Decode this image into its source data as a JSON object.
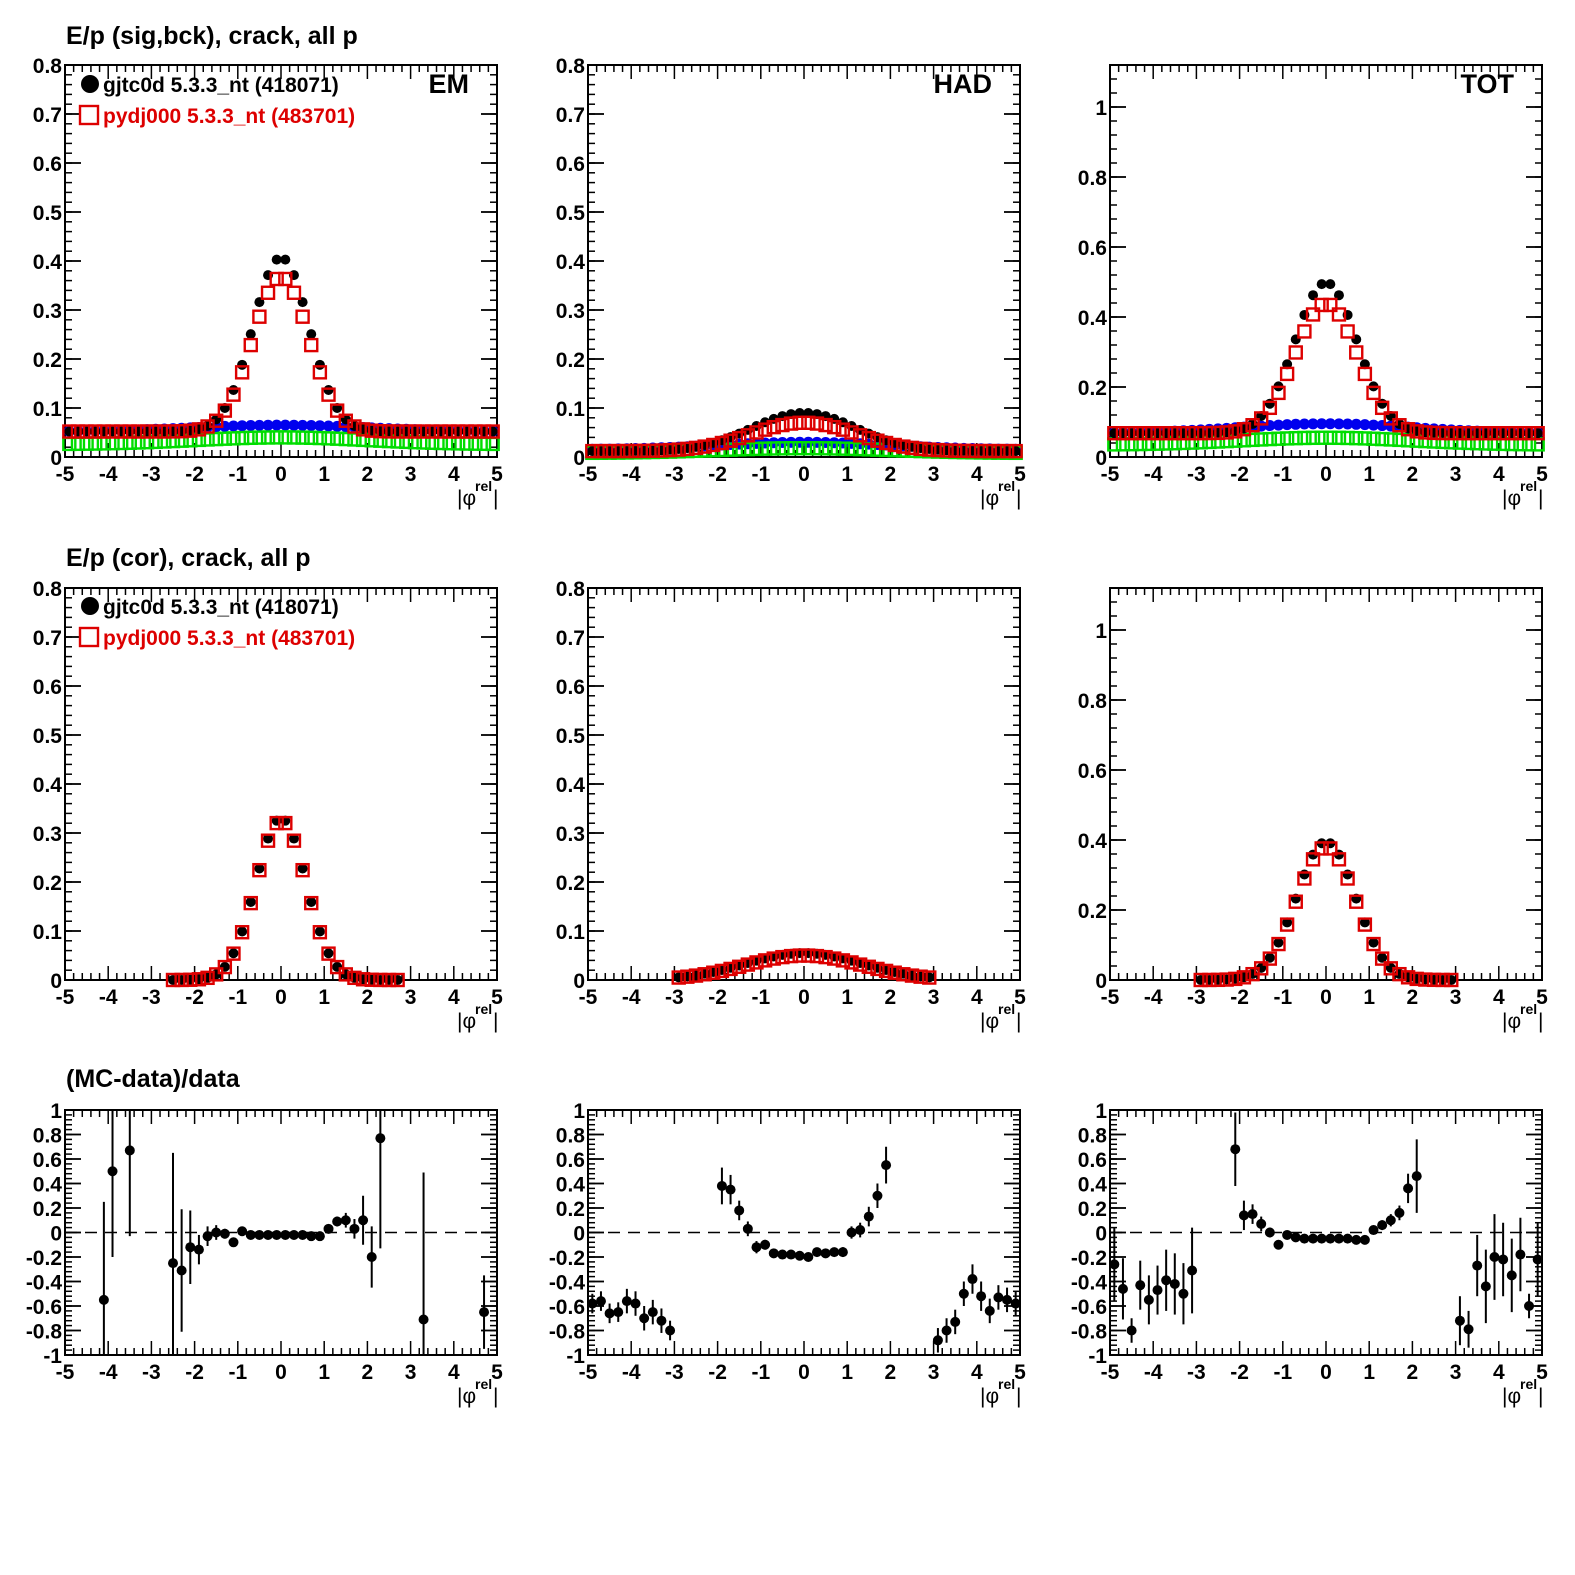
{
  "figure": {
    "row_titles": [
      "E/p (sig,bck), crack, all p",
      "E/p (cor), crack, all p",
      "(MC-data)/data"
    ],
    "xlabel": "|φ",
    "xlabel_sup": "rel",
    "xlabel_end": "|",
    "colors": {
      "data": "#000000",
      "mc": "#dd0000",
      "bck_data": "#0000ee",
      "bck_mc": "#00dd00"
    }
  },
  "legend": {
    "entries": [
      {
        "label": "gjtc0d 5.3.3_nt (418071)",
        "marker": "filled-circle",
        "color": "#000000"
      },
      {
        "label": "pydj000 5.3.3_nt (483701)",
        "marker": "open-square",
        "color": "#dd0000"
      }
    ]
  },
  "chart_data": [
    {
      "type": "scatter",
      "row": 0,
      "col": 0,
      "panel_label": "EM",
      "xlim": [
        -5,
        5
      ],
      "ylim": [
        0,
        0.8
      ],
      "yticks": [
        0,
        0.1,
        0.2,
        0.3,
        0.4,
        0.5,
        0.6,
        0.7,
        0.8
      ],
      "ytick_labels": [
        "0",
        "0.1",
        "0.2",
        "0.3",
        "0.4",
        "0.5",
        "0.6",
        "0.7",
        "0.8"
      ],
      "shape": {
        "kind": "gauss",
        "amp_data": 0.355,
        "amp_mc": 0.315,
        "sigma": 0.65,
        "base_data": 0.052,
        "base_mc": 0.052,
        "bck_data": 0.052,
        "bck_data_peak": 0.065,
        "bck_mc": 0.026,
        "bck_mc_peak": 0.04
      }
    },
    {
      "type": "scatter",
      "row": 0,
      "col": 1,
      "panel_label": "HAD",
      "xlim": [
        -5,
        5
      ],
      "ylim": [
        0,
        0.8
      ],
      "yticks": [
        0,
        0.1,
        0.2,
        0.3,
        0.4,
        0.5,
        0.6,
        0.7,
        0.8
      ],
      "ytick_labels": [
        "0",
        "0.1",
        "0.2",
        "0.3",
        "0.4",
        "0.5",
        "0.6",
        "0.7",
        "0.8"
      ],
      "shape": {
        "kind": "gauss",
        "amp_data": 0.078,
        "amp_mc": 0.058,
        "sigma": 1.2,
        "base_data": 0.012,
        "base_mc": 0.012,
        "bck_data": 0.015,
        "bck_data_peak": 0.03,
        "bck_mc": 0.008,
        "bck_mc_peak": 0.018
      }
    },
    {
      "type": "scatter",
      "row": 0,
      "col": 2,
      "panel_label": "TOT",
      "xlim": [
        -5,
        5
      ],
      "ylim": [
        0,
        1.12
      ],
      "yticks": [
        0,
        0.2,
        0.4,
        0.6,
        0.8,
        1
      ],
      "ytick_labels": [
        "0",
        "0.2",
        "0.4",
        "0.6",
        "0.8",
        "1"
      ],
      "shape": {
        "kind": "gauss",
        "amp_data": 0.43,
        "amp_mc": 0.37,
        "sigma": 0.72,
        "base_data": 0.068,
        "base_mc": 0.068,
        "bck_data": 0.068,
        "bck_data_peak": 0.095,
        "bck_mc": 0.035,
        "bck_mc_peak": 0.055
      }
    },
    {
      "type": "scatter",
      "row": 1,
      "col": 0,
      "panel_label": "",
      "xlim": [
        -5,
        5
      ],
      "ylim": [
        0,
        0.8
      ],
      "yticks": [
        0,
        0.1,
        0.2,
        0.3,
        0.4,
        0.5,
        0.6,
        0.7,
        0.8
      ],
      "ytick_labels": [
        "0",
        "0.1",
        "0.2",
        "0.3",
        "0.4",
        "0.5",
        "0.6",
        "0.7",
        "0.8"
      ],
      "shape": {
        "kind": "gauss",
        "amp_data": 0.33,
        "amp_mc": 0.325,
        "sigma": 0.58,
        "base_data": 0.0,
        "base_mc": 0.0,
        "range": [
          -2.5,
          2.7
        ]
      }
    },
    {
      "type": "scatter",
      "row": 1,
      "col": 1,
      "panel_label": "",
      "xlim": [
        -5,
        5
      ],
      "ylim": [
        0,
        0.8
      ],
      "yticks": [
        0,
        0.1,
        0.2,
        0.3,
        0.4,
        0.5,
        0.6,
        0.7,
        0.8
      ],
      "ytick_labels": [
        "0",
        "0.1",
        "0.2",
        "0.3",
        "0.4",
        "0.5",
        "0.6",
        "0.7",
        "0.8"
      ],
      "shape": {
        "kind": "gauss",
        "amp_data": 0.055,
        "amp_mc": 0.05,
        "sigma": 1.35,
        "base_data": 0.0,
        "base_mc": 0.0,
        "range": [
          -3,
          3
        ]
      }
    },
    {
      "type": "scatter",
      "row": 1,
      "col": 2,
      "panel_label": "",
      "xlim": [
        -5,
        5
      ],
      "ylim": [
        0,
        1.12
      ],
      "yticks": [
        0,
        0.2,
        0.4,
        0.6,
        0.8,
        1
      ],
      "ytick_labels": [
        "0",
        "0.2",
        "0.4",
        "0.6",
        "0.8",
        "1"
      ],
      "shape": {
        "kind": "gauss",
        "amp_data": 0.395,
        "amp_mc": 0.38,
        "sigma": 0.68,
        "base_data": 0.0,
        "base_mc": 0.0,
        "range": [
          -3,
          3
        ]
      }
    },
    {
      "type": "scatter",
      "row": 2,
      "col": 0,
      "panel_label": "",
      "xlim": [
        -5,
        5
      ],
      "ylim": [
        -1,
        1
      ],
      "yticks": [
        -1,
        -0.8,
        -0.6,
        -0.4,
        -0.2,
        0,
        0.2,
        0.4,
        0.6,
        0.8,
        1
      ],
      "ytick_labels": [
        "-1",
        "-0.8",
        "-0.6",
        "-0.4",
        "-0.2",
        "0",
        "0.2",
        "0.4",
        "0.6",
        "0.8",
        "1"
      ],
      "dashed_zero": true,
      "points": [
        [
          -4.1,
          -0.55,
          0.8
        ],
        [
          -3.9,
          0.5,
          0.7
        ],
        [
          -3.5,
          0.67,
          0.7
        ],
        [
          -2.5,
          -0.25,
          0.9
        ],
        [
          -2.3,
          -0.31,
          0.5
        ],
        [
          -2.1,
          -0.12,
          0.3
        ],
        [
          -1.9,
          -0.14,
          0.12
        ],
        [
          -1.7,
          -0.03,
          0.08
        ],
        [
          -1.5,
          0.0,
          0.06
        ],
        [
          -1.3,
          -0.01,
          0.04
        ],
        [
          -1.1,
          -0.08,
          0.03
        ],
        [
          -0.9,
          0.01,
          0.02
        ],
        [
          -0.7,
          -0.02,
          0.02
        ],
        [
          -0.5,
          -0.02,
          0.02
        ],
        [
          -0.3,
          -0.02,
          0.02
        ],
        [
          -0.1,
          -0.02,
          0.02
        ],
        [
          0.1,
          -0.02,
          0.02
        ],
        [
          0.3,
          -0.02,
          0.02
        ],
        [
          0.5,
          -0.02,
          0.02
        ],
        [
          0.7,
          -0.03,
          0.02
        ],
        [
          0.9,
          -0.03,
          0.02
        ],
        [
          1.1,
          0.03,
          0.03
        ],
        [
          1.3,
          0.09,
          0.04
        ],
        [
          1.5,
          0.1,
          0.06
        ],
        [
          1.7,
          0.03,
          0.08
        ],
        [
          1.9,
          0.1,
          0.2
        ],
        [
          2.1,
          -0.2,
          0.25
        ],
        [
          2.3,
          0.77,
          0.9
        ],
        [
          3.3,
          -0.71,
          1.2
        ],
        [
          4.7,
          -0.65,
          0.3
        ]
      ]
    },
    {
      "type": "scatter",
      "row": 2,
      "col": 1,
      "panel_label": "",
      "xlim": [
        -5,
        5
      ],
      "ylim": [
        -1,
        1
      ],
      "yticks": [
        -1,
        -0.8,
        -0.6,
        -0.4,
        -0.2,
        0,
        0.2,
        0.4,
        0.6,
        0.8,
        1
      ],
      "ytick_labels": [
        "-1",
        "-0.8",
        "-0.6",
        "-0.4",
        "-0.2",
        "0",
        "0.2",
        "0.4",
        "0.6",
        "0.8",
        "1"
      ],
      "dashed_zero": true,
      "points": [
        [
          -4.9,
          -0.58,
          0.08
        ],
        [
          -4.7,
          -0.56,
          0.08
        ],
        [
          -4.5,
          -0.66,
          0.08
        ],
        [
          -4.3,
          -0.65,
          0.08
        ],
        [
          -4.1,
          -0.56,
          0.1
        ],
        [
          -3.9,
          -0.58,
          0.1
        ],
        [
          -3.7,
          -0.7,
          0.1
        ],
        [
          -3.5,
          -0.65,
          0.1
        ],
        [
          -3.3,
          -0.72,
          0.1
        ],
        [
          -3.1,
          -0.8,
          0.08
        ],
        [
          -1.9,
          0.38,
          0.15
        ],
        [
          -1.7,
          0.35,
          0.12
        ],
        [
          -1.5,
          0.18,
          0.08
        ],
        [
          -1.3,
          0.03,
          0.06
        ],
        [
          -1.1,
          -0.12,
          0.05
        ],
        [
          -0.9,
          -0.1,
          0.04
        ],
        [
          -0.7,
          -0.17,
          0.03
        ],
        [
          -0.5,
          -0.18,
          0.03
        ],
        [
          -0.3,
          -0.18,
          0.03
        ],
        [
          -0.1,
          -0.19,
          0.03
        ],
        [
          0.1,
          -0.2,
          0.03
        ],
        [
          0.3,
          -0.16,
          0.03
        ],
        [
          0.5,
          -0.17,
          0.03
        ],
        [
          0.7,
          -0.16,
          0.03
        ],
        [
          0.9,
          -0.16,
          0.04
        ],
        [
          1.1,
          0.0,
          0.05
        ],
        [
          1.3,
          0.02,
          0.06
        ],
        [
          1.5,
          0.13,
          0.08
        ],
        [
          1.7,
          0.3,
          0.1
        ],
        [
          1.9,
          0.55,
          0.15
        ],
        [
          3.1,
          -0.88,
          0.1
        ],
        [
          3.3,
          -0.8,
          0.1
        ],
        [
          3.5,
          -0.73,
          0.1
        ],
        [
          3.7,
          -0.5,
          0.1
        ],
        [
          3.9,
          -0.38,
          0.12
        ],
        [
          4.1,
          -0.52,
          0.12
        ],
        [
          4.3,
          -0.64,
          0.1
        ],
        [
          4.5,
          -0.53,
          0.1
        ],
        [
          4.7,
          -0.55,
          0.1
        ],
        [
          4.9,
          -0.58,
          0.1
        ]
      ]
    },
    {
      "type": "scatter",
      "row": 2,
      "col": 2,
      "panel_label": "",
      "xlim": [
        -5,
        5
      ],
      "ylim": [
        -1,
        1
      ],
      "yticks": [
        -1,
        -0.8,
        -0.6,
        -0.4,
        -0.2,
        0,
        0.2,
        0.4,
        0.6,
        0.8,
        1
      ],
      "ytick_labels": [
        "-1",
        "-0.8",
        "-0.6",
        "-0.4",
        "-0.2",
        "0",
        "0.2",
        "0.4",
        "0.6",
        "0.8",
        "1"
      ],
      "dashed_zero": true,
      "points": [
        [
          -4.9,
          -0.26,
          0.3
        ],
        [
          -4.7,
          -0.46,
          0.25
        ],
        [
          -4.5,
          -0.8,
          0.1
        ],
        [
          -4.3,
          -0.43,
          0.2
        ],
        [
          -4.1,
          -0.55,
          0.2
        ],
        [
          -3.9,
          -0.47,
          0.2
        ],
        [
          -3.7,
          -0.39,
          0.25
        ],
        [
          -3.5,
          -0.42,
          0.25
        ],
        [
          -3.3,
          -0.5,
          0.25
        ],
        [
          -3.1,
          -0.31,
          0.35
        ],
        [
          -2.1,
          0.68,
          0.3
        ],
        [
          -1.9,
          0.14,
          0.12
        ],
        [
          -1.7,
          0.15,
          0.08
        ],
        [
          -1.5,
          0.07,
          0.06
        ],
        [
          -1.3,
          0.0,
          0.04
        ],
        [
          -1.1,
          -0.1,
          0.03
        ],
        [
          -0.9,
          -0.02,
          0.02
        ],
        [
          -0.7,
          -0.04,
          0.02
        ],
        [
          -0.5,
          -0.05,
          0.02
        ],
        [
          -0.3,
          -0.05,
          0.02
        ],
        [
          -0.1,
          -0.05,
          0.02
        ],
        [
          0.1,
          -0.05,
          0.02
        ],
        [
          0.3,
          -0.05,
          0.02
        ],
        [
          0.5,
          -0.05,
          0.02
        ],
        [
          0.7,
          -0.06,
          0.02
        ],
        [
          0.9,
          -0.06,
          0.02
        ],
        [
          1.1,
          0.02,
          0.03
        ],
        [
          1.3,
          0.06,
          0.04
        ],
        [
          1.5,
          0.1,
          0.05
        ],
        [
          1.7,
          0.16,
          0.06
        ],
        [
          1.9,
          0.36,
          0.12
        ],
        [
          2.1,
          0.46,
          0.3
        ],
        [
          3.1,
          -0.72,
          0.2
        ],
        [
          3.3,
          -0.79,
          0.15
        ],
        [
          3.5,
          -0.27,
          0.25
        ],
        [
          3.7,
          -0.44,
          0.3
        ],
        [
          3.9,
          -0.2,
          0.35
        ],
        [
          4.1,
          -0.22,
          0.3
        ],
        [
          4.3,
          -0.35,
          0.3
        ],
        [
          4.5,
          -0.18,
          0.3
        ],
        [
          4.7,
          -0.6,
          0.1
        ],
        [
          4.9,
          -0.22,
          0.3
        ]
      ]
    }
  ]
}
